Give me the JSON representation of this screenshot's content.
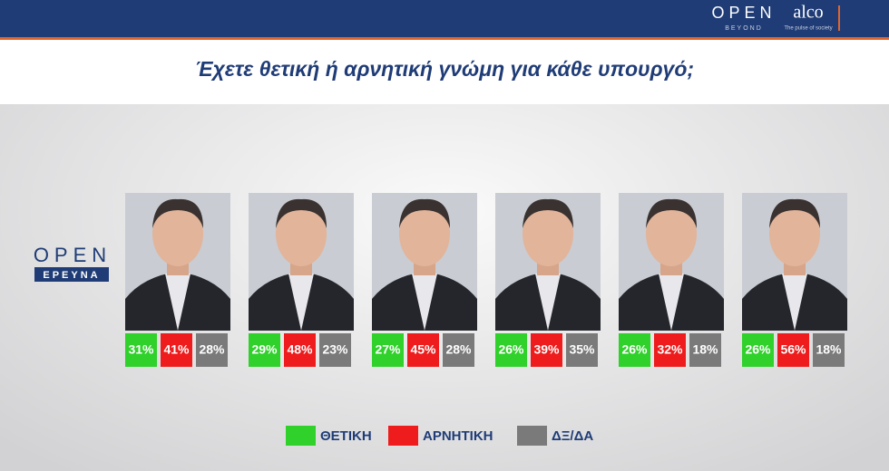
{
  "header": {
    "brand": "OPEN",
    "brand_sub": "BEYOND",
    "partner": "alco",
    "partner_tagline": "The pulse of society"
  },
  "title": "Έχετε θετική ή αρνητική γνώμη για κάθε υπουργό;",
  "side_logo": {
    "top": "OPEN",
    "bottom": "ΕΡΕΥΝΑ"
  },
  "ministers": [
    {
      "positive": "31%",
      "negative": "41%",
      "neutral": "28%"
    },
    {
      "positive": "29%",
      "negative": "48%",
      "neutral": "23%"
    },
    {
      "positive": "27%",
      "negative": "45%",
      "neutral": "28%"
    },
    {
      "positive": "26%",
      "negative": "39%",
      "neutral": "35%"
    },
    {
      "positive": "26%",
      "negative": "32%",
      "neutral": "18%"
    },
    {
      "positive": "26%",
      "negative": "56%",
      "neutral": "18%"
    }
  ],
  "legend": [
    {
      "label": "ΘΕΤΙΚΗ",
      "color": "#2fd12a"
    },
    {
      "label": "ΑΡΝΗΤΙΚΗ",
      "color": "#ee1c1c"
    },
    {
      "label": "ΔΞ/ΔΑ",
      "color": "#7a7a7a"
    }
  ]
}
